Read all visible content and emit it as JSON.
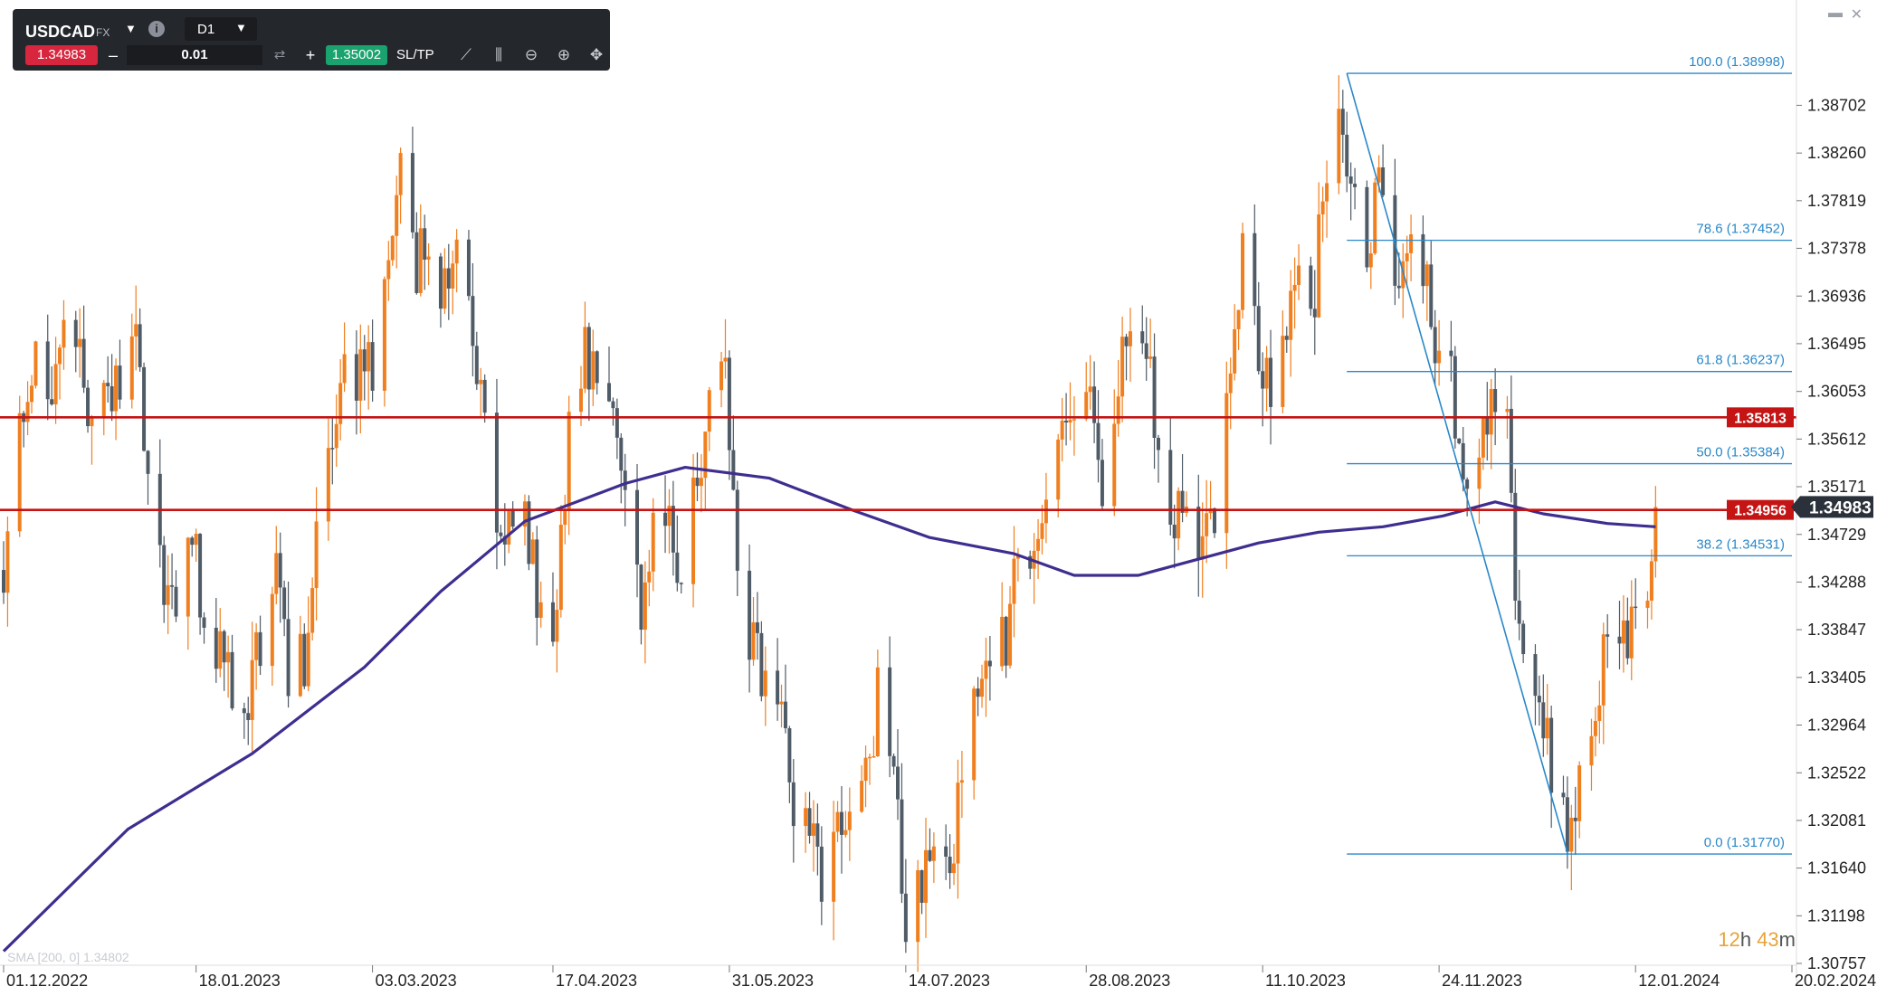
{
  "toolbar": {
    "symbol": "USDCAD",
    "market": "FX",
    "timeframe": "D1",
    "sell_price": "1.34983",
    "quantity": "0.01",
    "buy_price": "1.35002",
    "sltp_label": "SL/TP",
    "icons": [
      "chevron-down-icon",
      "info-icon",
      "swap-icon",
      "trend-line-icon",
      "candles-icon",
      "zoom-out-icon",
      "zoom-in-icon",
      "crosshair-move-icon"
    ]
  },
  "window_controls": [
    "minimize-icon",
    "close-icon"
  ],
  "timer": {
    "hours": "12",
    "h_unit": "h",
    "minutes": "43",
    "m_unit": "m"
  },
  "sma_legend": "SMA [200, 0] 1.34802",
  "colors": {
    "bull": "#f07f1f",
    "bear": "#4f5b66",
    "sma": "#3f2d8f",
    "resistance": "#c41414",
    "fib": "#2a88c9",
    "current_price_tag": "#2b313a"
  },
  "chart_data": {
    "type": "candlestick",
    "symbol": "USDCAD",
    "timeframe": "D1",
    "x_range": [
      "2022-12-01",
      "2024-02-20"
    ],
    "ylim": [
      1.30757,
      1.393
    ],
    "y_ticks": [
      "1.38702",
      "1.38260",
      "1.37819",
      "1.37378",
      "1.36936",
      "1.36495",
      "1.36053",
      "1.35612",
      "1.35171",
      "1.34729",
      "1.34288",
      "1.33847",
      "1.33405",
      "1.32964",
      "1.32522",
      "1.32081",
      "1.31640",
      "1.31198",
      "1.30757"
    ],
    "x_ticks": [
      "01.12.2022",
      "18.01.2023",
      "03.03.2023",
      "17.04.2023",
      "31.05.2023",
      "14.07.2023",
      "28.08.2023",
      "11.10.2023",
      "24.11.2023",
      "12.01.2024",
      "20.02.2024"
    ],
    "price_path": [
      [
        "2022-12-01",
        1.344
      ],
      [
        "2022-12-05",
        1.356
      ],
      [
        "2022-12-09",
        1.364
      ],
      [
        "2022-12-13",
        1.361
      ],
      [
        "2022-12-16",
        1.368
      ],
      [
        "2022-12-20",
        1.364
      ],
      [
        "2022-12-23",
        1.358
      ],
      [
        "2022-12-28",
        1.36
      ],
      [
        "2023-01-03",
        1.365
      ],
      [
        "2023-01-06",
        1.354
      ],
      [
        "2023-01-10",
        1.343
      ],
      [
        "2023-01-13",
        1.34
      ],
      [
        "2023-01-17",
        1.348
      ],
      [
        "2023-01-20",
        1.338
      ],
      [
        "2023-01-24",
        1.337
      ],
      [
        "2023-01-27",
        1.334
      ],
      [
        "2023-01-31",
        1.331
      ],
      [
        "2023-02-03",
        1.338
      ],
      [
        "2023-02-07",
        1.344
      ],
      [
        "2023-02-10",
        1.334
      ],
      [
        "2023-02-14",
        1.336
      ],
      [
        "2023-02-17",
        1.348
      ],
      [
        "2023-02-21",
        1.356
      ],
      [
        "2023-02-24",
        1.361
      ],
      [
        "2023-02-28",
        1.363
      ],
      [
        "2023-03-03",
        1.362
      ],
      [
        "2023-03-07",
        1.375
      ],
      [
        "2023-03-10",
        1.383
      ],
      [
        "2023-03-14",
        1.372
      ],
      [
        "2023-03-17",
        1.375
      ],
      [
        "2023-03-21",
        1.37
      ],
      [
        "2023-03-24",
        1.374
      ],
      [
        "2023-03-28",
        1.365
      ],
      [
        "2023-03-31",
        1.356
      ],
      [
        "2023-04-04",
        1.346
      ],
      [
        "2023-04-07",
        1.348
      ],
      [
        "2023-04-11",
        1.347
      ],
      [
        "2023-04-14",
        1.339
      ],
      [
        "2023-04-18",
        1.34
      ],
      [
        "2023-04-21",
        1.356
      ],
      [
        "2023-04-25",
        1.364
      ],
      [
        "2023-04-28",
        1.362
      ],
      [
        "2023-05-02",
        1.362
      ],
      [
        "2023-05-05",
        1.352
      ],
      [
        "2023-05-09",
        1.34
      ],
      [
        "2023-05-12",
        1.347
      ],
      [
        "2023-05-16",
        1.349
      ],
      [
        "2023-05-19",
        1.344
      ],
      [
        "2023-05-23",
        1.353
      ],
      [
        "2023-05-26",
        1.36
      ],
      [
        "2023-05-30",
        1.361
      ],
      [
        "2023-06-02",
        1.343
      ],
      [
        "2023-06-06",
        1.337
      ],
      [
        "2023-06-09",
        1.332
      ],
      [
        "2023-06-13",
        1.332
      ],
      [
        "2023-06-16",
        1.321
      ],
      [
        "2023-06-20",
        1.322
      ],
      [
        "2023-06-23",
        1.316
      ],
      [
        "2023-06-27",
        1.319
      ],
      [
        "2023-06-30",
        1.324
      ],
      [
        "2023-07-04",
        1.325
      ],
      [
        "2023-07-07",
        1.332
      ],
      [
        "2023-07-11",
        1.324
      ],
      [
        "2023-07-14",
        1.312
      ],
      [
        "2023-07-18",
        1.316
      ],
      [
        "2023-07-21",
        1.319
      ],
      [
        "2023-07-25",
        1.318
      ],
      [
        "2023-07-28",
        1.323
      ],
      [
        "2023-08-01",
        1.333
      ],
      [
        "2023-08-04",
        1.337
      ],
      [
        "2023-08-08",
        1.338
      ],
      [
        "2023-08-11",
        1.344
      ],
      [
        "2023-08-15",
        1.347
      ],
      [
        "2023-08-18",
        1.352
      ],
      [
        "2023-08-22",
        1.356
      ],
      [
        "2023-08-25",
        1.358
      ],
      [
        "2023-08-29",
        1.36
      ],
      [
        "2023-09-01",
        1.351
      ],
      [
        "2023-09-05",
        1.36
      ],
      [
        "2023-09-08",
        1.368
      ],
      [
        "2023-09-12",
        1.364
      ],
      [
        "2023-09-15",
        1.354
      ],
      [
        "2023-09-19",
        1.35
      ],
      [
        "2023-09-22",
        1.348
      ],
      [
        "2023-09-26",
        1.345
      ],
      [
        "2023-09-29",
        1.35
      ],
      [
        "2023-10-03",
        1.365
      ],
      [
        "2023-10-06",
        1.373
      ],
      [
        "2023-10-10",
        1.364
      ],
      [
        "2023-10-13",
        1.36
      ],
      [
        "2023-10-17",
        1.366
      ],
      [
        "2023-10-20",
        1.372
      ],
      [
        "2023-10-24",
        1.37
      ],
      [
        "2023-10-27",
        1.382
      ],
      [
        "2023-10-31",
        1.387
      ],
      [
        "2023-11-02",
        1.379
      ],
      [
        "2023-11-06",
        1.372
      ],
      [
        "2023-11-09",
        1.381
      ],
      [
        "2023-11-13",
        1.373
      ],
      [
        "2023-11-16",
        1.373
      ],
      [
        "2023-11-20",
        1.372
      ],
      [
        "2023-11-23",
        1.365
      ],
      [
        "2023-11-27",
        1.361
      ],
      [
        "2023-11-30",
        1.35
      ],
      [
        "2023-12-04",
        1.356
      ],
      [
        "2023-12-07",
        1.359
      ],
      [
        "2023-12-11",
        1.357
      ],
      [
        "2023-12-13",
        1.343
      ],
      [
        "2023-12-15",
        1.338
      ],
      [
        "2023-12-19",
        1.332
      ],
      [
        "2023-12-22",
        1.325
      ],
      [
        "2023-12-27",
        1.318
      ],
      [
        "2023-12-29",
        1.326
      ],
      [
        "2024-01-03",
        1.334
      ],
      [
        "2024-01-05",
        1.337
      ],
      [
        "2024-01-09",
        1.338
      ],
      [
        "2024-01-12",
        1.339
      ],
      [
        "2024-01-15",
        1.341
      ],
      [
        "2024-01-17",
        1.3498
      ]
    ],
    "sma_200": {
      "name": "SMA [200, 0]",
      "last_value": 1.34802,
      "points": [
        [
          "2022-12-01",
          1.3087
        ],
        [
          "2023-01-01",
          1.32
        ],
        [
          "2023-02-01",
          1.327
        ],
        [
          "2023-03-01",
          1.335
        ],
        [
          "2023-03-20",
          1.342
        ],
        [
          "2023-04-10",
          1.3485
        ],
        [
          "2023-05-05",
          1.352
        ],
        [
          "2023-05-20",
          1.3535
        ],
        [
          "2023-06-10",
          1.3525
        ],
        [
          "2023-07-01",
          1.3495
        ],
        [
          "2023-07-20",
          1.347
        ],
        [
          "2023-08-10",
          1.3455
        ],
        [
          "2023-08-25",
          1.3435
        ],
        [
          "2023-09-10",
          1.3435
        ],
        [
          "2023-09-25",
          1.345
        ],
        [
          "2023-10-10",
          1.3465
        ],
        [
          "2023-10-25",
          1.3475
        ],
        [
          "2023-11-10",
          1.348
        ],
        [
          "2023-11-25",
          1.349
        ],
        [
          "2023-12-08",
          1.3503
        ],
        [
          "2023-12-20",
          1.3492
        ],
        [
          "2024-01-05",
          1.3483
        ],
        [
          "2024-01-17",
          1.348
        ]
      ]
    },
    "horizontal_levels": [
      {
        "price": 1.35813,
        "label": "1.35813"
      },
      {
        "price": 1.34956,
        "label": "1.34956"
      }
    ],
    "current_price": {
      "price": 1.34983,
      "label": "1.34983"
    },
    "fibonacci": {
      "start": [
        "2023-11-01",
        1.38998
      ],
      "end": [
        "2023-12-27",
        1.3177
      ],
      "levels": [
        {
          "ratio": "100.0",
          "price": 1.38998,
          "label": "100.0 (1.38998)"
        },
        {
          "ratio": "78.6",
          "price": 1.37452,
          "label": "78.6 (1.37452)"
        },
        {
          "ratio": "61.8",
          "price": 1.36237,
          "label": "61.8 (1.36237)"
        },
        {
          "ratio": "50.0",
          "price": 1.35384,
          "label": "50.0 (1.35384)"
        },
        {
          "ratio": "38.2",
          "price": 1.34531,
          "label": "38.2 (1.34531)"
        },
        {
          "ratio": "0.0",
          "price": 1.3177,
          "label": "0.0 (1.31770)"
        }
      ]
    }
  }
}
